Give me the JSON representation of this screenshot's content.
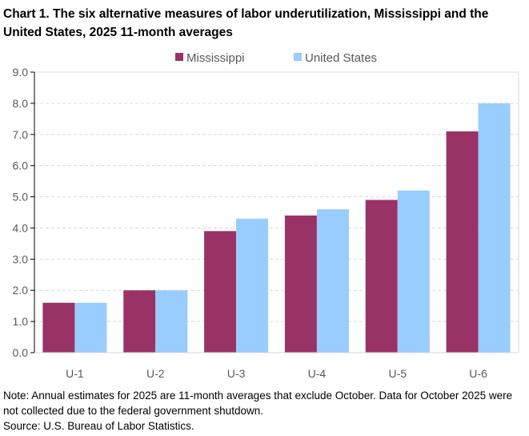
{
  "chart_data": {
    "type": "bar",
    "title": "Chart 1. The six alternative measures of labor underutilization, Mississippi and the United States, 2025 11-month averages",
    "categories": [
      "U-1",
      "U-2",
      "U-3",
      "U-4",
      "U-5",
      "U-6"
    ],
    "series": [
      {
        "name": "Mississippi",
        "color": "#993366",
        "values": [
          1.6,
          2.0,
          3.9,
          4.4,
          4.9,
          7.1
        ]
      },
      {
        "name": "United States",
        "color": "#99ccff",
        "values": [
          1.6,
          2.0,
          4.3,
          4.6,
          5.2,
          8.0
        ]
      }
    ],
    "ylim": [
      0,
      9
    ],
    "yticks": [
      "0.0",
      "1.0",
      "2.0",
      "3.0",
      "4.0",
      "5.0",
      "6.0",
      "7.0",
      "8.0",
      "9.0"
    ],
    "grid": true,
    "legend": "top-center"
  },
  "notes": {
    "note": "Note: Annual estimates for 2025 are 11-month averages that exclude October. Data for October 2025 were not collected due to the federal government shutdown.",
    "source": "Source: U.S. Bureau of Labor Statistics."
  }
}
